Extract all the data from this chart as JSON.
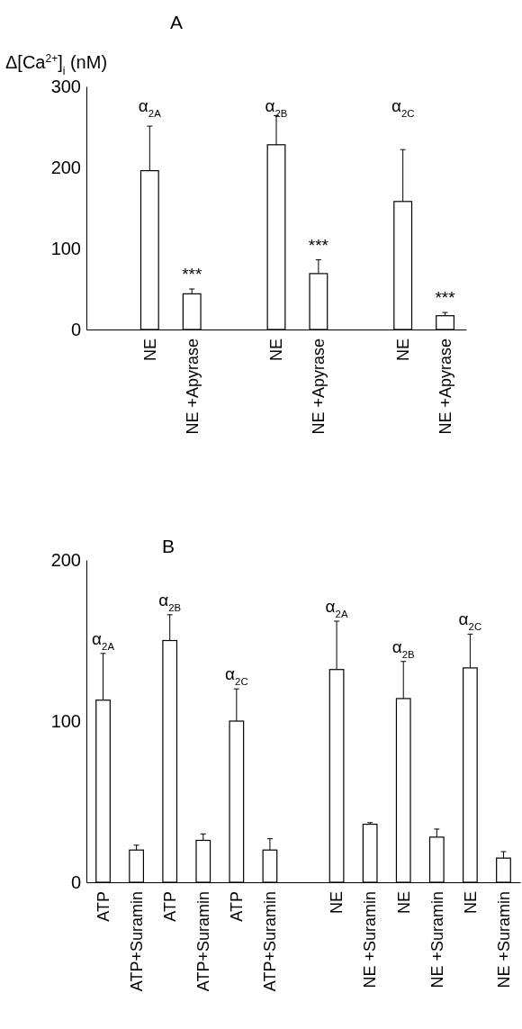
{
  "chart_data": [
    {
      "type": "bar",
      "title": "A",
      "ylabel": "Δ[Ca$^{2+}$]$_{i}$ (nM)",
      "categories": [
        null,
        "NE",
        "NE +Apyrase",
        null,
        "NE",
        "NE +Apyrase",
        null,
        "NE",
        "NE +Apyrase"
      ],
      "series": [
        {
          "color": "#ffffff",
          "values": [
            null,
            196,
            44,
            null,
            228,
            69,
            null,
            158,
            17
          ],
          "errors": [
            null,
            [
              196,
              251
            ],
            [
              44,
              50
            ],
            null,
            [
              228,
              264
            ],
            [
              69,
              86
            ],
            null,
            [
              158,
              222
            ],
            [
              17,
              21
            ]
          ]
        }
      ],
      "annotations": [
        "α$_{2A}$",
        "***",
        "α$_{2B}$",
        "***",
        "α$_{2C}$",
        "***"
      ],
      "ylim": [
        0,
        300
      ],
      "yticks": [
        0,
        100,
        200,
        300
      ]
    },
    {
      "type": "bar",
      "title": "B",
      "categories": [
        "ATP",
        "ATP+Suramin",
        "ATP",
        "ATP+Suramin",
        "ATP",
        "ATP+Suramin",
        null,
        "NE",
        "NE +Suramin",
        "NE",
        "NE +Suramin",
        "NE",
        "NE +Suramin"
      ],
      "series": [
        {
          "color": "#ffffff",
          "values": [
            113,
            20,
            150,
            26,
            100,
            20,
            null,
            132,
            36,
            114,
            28,
            133,
            15
          ],
          "errors": [
            [
              113,
              142
            ],
            [
              20,
              23
            ],
            [
              150,
              166
            ],
            [
              26,
              30
            ],
            [
              100,
              120
            ],
            [
              20,
              27
            ],
            null,
            [
              132,
              162
            ],
            [
              36,
              37
            ],
            [
              114,
              137
            ],
            [
              28,
              33
            ],
            [
              133,
              154
            ],
            [
              15,
              19
            ]
          ]
        }
      ],
      "annotations": [
        "α$_{2A}$",
        "α$_{2B}$",
        "α$_{2C}$",
        "α$_{2A}$",
        "α$_{2B}$",
        "α$_{2C}$"
      ],
      "ylim": [
        0,
        200
      ],
      "yticks": [
        0,
        100,
        200
      ]
    }
  ]
}
